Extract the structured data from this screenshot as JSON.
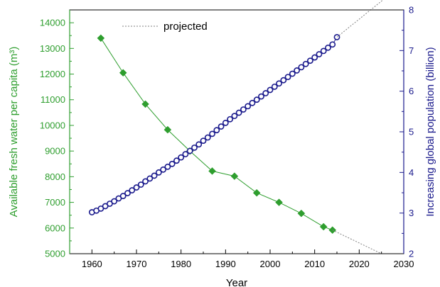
{
  "chart_data": {
    "type": "line",
    "xlabel": "Year",
    "ylabel_left": "Available fresh water per capita (m³)",
    "ylabel_right": "Increasing global population (billion)",
    "xlim": [
      1955,
      2030
    ],
    "x_ticks": [
      1960,
      1970,
      1980,
      1990,
      2000,
      2010,
      2020,
      2030
    ],
    "ylim_left": [
      5000,
      14500
    ],
    "y_ticks_left": [
      5000,
      6000,
      7000,
      8000,
      9000,
      10000,
      11000,
      12000,
      13000,
      14000
    ],
    "ylim_right": [
      2,
      8
    ],
    "y_ticks_right": [
      2,
      3,
      4,
      5,
      6,
      7,
      8
    ],
    "legend": {
      "label": "projected",
      "placement": "top"
    },
    "colors": {
      "water": "#2e9e2e",
      "population": "#1a1a8c",
      "projected": "#808080",
      "axes": "#000000"
    },
    "series": [
      {
        "axis": "left",
        "marker": "diamond",
        "x": [
          1962,
          1967,
          1972,
          1977,
          1982,
          1987,
          1992,
          1997,
          2002,
          2007,
          2012,
          2014
        ],
        "values": [
          13400,
          12050,
          10830,
          9830,
          9000,
          8220,
          8020,
          7370,
          7000,
          6570,
          6050,
          5920
        ]
      },
      {
        "axis": "right",
        "marker": "circle",
        "x": [
          1960,
          1961,
          1962,
          1963,
          1964,
          1965,
          1966,
          1967,
          1968,
          1969,
          1970,
          1971,
          1972,
          1973,
          1974,
          1975,
          1976,
          1977,
          1978,
          1979,
          1980,
          1981,
          1982,
          1983,
          1984,
          1985,
          1986,
          1987,
          1988,
          1989,
          1990,
          1991,
          1992,
          1993,
          1994,
          1995,
          1996,
          1997,
          1998,
          1999,
          2000,
          2001,
          2002,
          2003,
          2004,
          2005,
          2006,
          2007,
          2008,
          2009,
          2010,
          2011,
          2012,
          2013,
          2014,
          2015
        ],
        "values": [
          3.02,
          3.06,
          3.11,
          3.17,
          3.23,
          3.29,
          3.36,
          3.42,
          3.49,
          3.56,
          3.63,
          3.7,
          3.78,
          3.85,
          3.92,
          4.0,
          4.07,
          4.14,
          4.21,
          4.29,
          4.37,
          4.45,
          4.53,
          4.61,
          4.69,
          4.78,
          4.86,
          4.95,
          5.04,
          5.13,
          5.22,
          5.31,
          5.39,
          5.47,
          5.55,
          5.63,
          5.71,
          5.79,
          5.87,
          5.95,
          6.03,
          6.11,
          6.19,
          6.27,
          6.35,
          6.43,
          6.51,
          6.59,
          6.67,
          6.75,
          6.83,
          6.91,
          6.99,
          7.07,
          7.15,
          7.33
        ]
      },
      {
        "axis": "left",
        "style": "dotted",
        "x": [
          2014,
          2025
        ],
        "values": [
          5920,
          5000
        ]
      },
      {
        "axis": "right",
        "style": "dotted",
        "x": [
          2015,
          2030
        ],
        "values": [
          7.33,
          8.66
        ]
      }
    ]
  }
}
